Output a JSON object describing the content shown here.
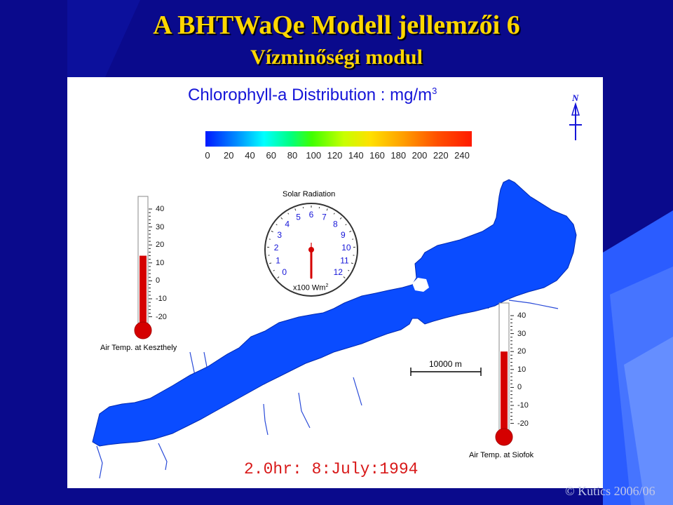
{
  "slide": {
    "title": "A BHTWaQe Modell jellemzői 6",
    "subtitle": "Vízminőségi modul",
    "copyright": "© Kutics 2006/06"
  },
  "figure": {
    "title": "Chlorophyll-a Distribution : mg/m",
    "title_sup": "3",
    "colorbar_ticks": [
      "0",
      "20",
      "40",
      "60",
      "80",
      "100",
      "120",
      "140",
      "160",
      "180",
      "200",
      "220",
      "240"
    ],
    "north_label": "N",
    "solar": {
      "title": "Solar Radiation",
      "numbers": [
        "0",
        "1",
        "2",
        "3",
        "4",
        "5",
        "6",
        "7",
        "8",
        "9",
        "10",
        "11",
        "12"
      ],
      "unit": "x100 Wm",
      "unit_sup": "2",
      "reading": 6
    },
    "thermometer_left": {
      "label": "Air Temp. at Keszthely",
      "ticks": [
        "40",
        "30",
        "20",
        "10",
        "0",
        "-10",
        "-20"
      ],
      "value": 14
    },
    "thermometer_right": {
      "label": "Air Temp. at Siofok",
      "ticks": [
        "40",
        "30",
        "20",
        "10",
        "0",
        "-10",
        "-20"
      ],
      "value": 20
    },
    "scale_bar": "10000 m",
    "timestamp": "2.0hr: 8:July:1994"
  },
  "colors": {
    "lake": "#0a4cff",
    "mercury": "#d50000",
    "slide_bg": "#0a0a8c",
    "title": "#ffd700"
  }
}
